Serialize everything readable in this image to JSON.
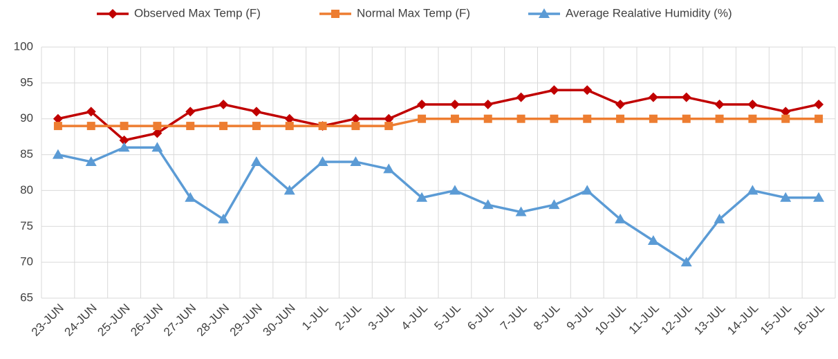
{
  "chart_data": {
    "type": "line",
    "categories": [
      "23-JUN",
      "24-JUN",
      "25-JUN",
      "26-JUN",
      "27-JUN",
      "28-JUN",
      "29-JUN",
      "30-JUN",
      "1-JUL",
      "2-JUL",
      "3-JUL",
      "4-JUL",
      "5-JUL",
      "6-JUL",
      "7-JUL",
      "8-JUL",
      "9-JUL",
      "10-JUL",
      "11-JUL",
      "12-JUL",
      "13-JUL",
      "14-JUL",
      "15-JUL",
      "16-JUL"
    ],
    "series": [
      {
        "name": "Observed Max Temp (F)",
        "color": "#c00000",
        "marker": "diamond",
        "values": [
          90,
          91,
          87,
          88,
          91,
          92,
          91,
          90,
          89,
          90,
          90,
          92,
          92,
          92,
          93,
          94,
          94,
          92,
          93,
          93,
          92,
          92,
          91,
          92
        ]
      },
      {
        "name": "Normal Max Temp (F)",
        "color": "#ed7d31",
        "marker": "square",
        "values": [
          89,
          89,
          89,
          89,
          89,
          89,
          89,
          89,
          89,
          89,
          89,
          90,
          90,
          90,
          90,
          90,
          90,
          90,
          90,
          90,
          90,
          90,
          90,
          90
        ]
      },
      {
        "name": "Average Realative Humidity (%)",
        "color": "#5b9bd5",
        "marker": "triangle",
        "values": [
          85,
          84,
          86,
          86,
          79,
          76,
          84,
          80,
          84,
          84,
          83,
          79,
          80,
          78,
          77,
          78,
          80,
          76,
          73,
          70,
          76,
          80,
          79,
          79
        ]
      }
    ],
    "ylim": [
      65,
      100
    ],
    "yticks": [
      65,
      70,
      75,
      80,
      85,
      90,
      95,
      100
    ],
    "grid": true,
    "legend": "top"
  }
}
